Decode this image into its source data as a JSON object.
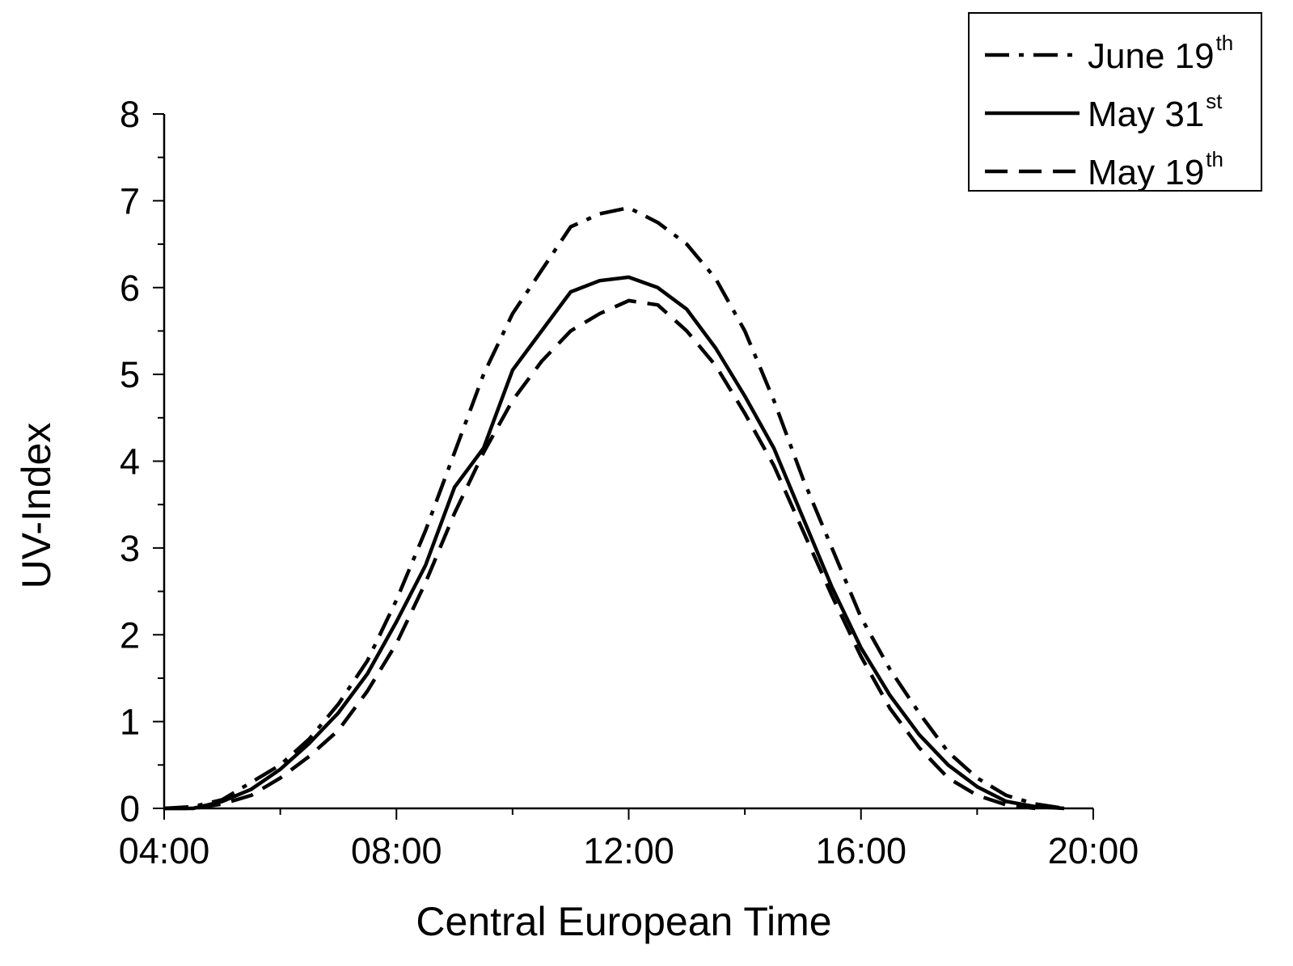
{
  "chart_data": {
    "type": "line",
    "title": "",
    "xlabel": "Central European Time",
    "ylabel": "UV-Index",
    "xlim": [
      4,
      20
    ],
    "ylim": [
      0,
      8
    ],
    "x_ticks": [
      4,
      8,
      12,
      16,
      20
    ],
    "x_tick_labels": [
      "04:00",
      "08:00",
      "12:00",
      "16:00",
      "20:00"
    ],
    "y_ticks": [
      0,
      1,
      2,
      3,
      4,
      5,
      6,
      7,
      8
    ],
    "y_tick_labels": [
      "0",
      "1",
      "2",
      "3",
      "4",
      "5",
      "6",
      "7",
      "8"
    ],
    "grid": false,
    "legend_position": "top-right",
    "series": [
      {
        "name": "June 19th",
        "label_main": "June 19",
        "label_sup": "th",
        "dash": "dashdot",
        "x": [
          4.0,
          4.5,
          5.0,
          5.5,
          6.0,
          6.5,
          7.0,
          7.5,
          8.0,
          8.5,
          9.0,
          9.5,
          10.0,
          10.5,
          11.0,
          11.5,
          12.0,
          12.5,
          13.0,
          13.5,
          14.0,
          14.5,
          15.0,
          15.5,
          16.0,
          16.5,
          17.0,
          17.5,
          18.0,
          18.5,
          19.0,
          19.5
        ],
        "y": [
          0.0,
          0.02,
          0.1,
          0.3,
          0.5,
          0.8,
          1.2,
          1.7,
          2.4,
          3.2,
          4.1,
          5.0,
          5.7,
          6.2,
          6.7,
          6.85,
          6.92,
          6.75,
          6.5,
          6.1,
          5.5,
          4.7,
          3.8,
          3.0,
          2.2,
          1.6,
          1.1,
          0.65,
          0.35,
          0.15,
          0.05,
          0.0
        ]
      },
      {
        "name": "May 31st",
        "label_main": "May 31",
        "label_sup": "st",
        "dash": "solid",
        "x": [
          4.0,
          4.5,
          5.0,
          5.5,
          6.0,
          6.5,
          7.0,
          7.5,
          8.0,
          8.5,
          9.0,
          9.5,
          10.0,
          10.5,
          11.0,
          11.5,
          12.0,
          12.5,
          13.0,
          13.5,
          14.0,
          14.5,
          15.0,
          15.5,
          16.0,
          16.5,
          17.0,
          17.5,
          18.0,
          18.5,
          19.0,
          19.5
        ],
        "y": [
          0.0,
          0.0,
          0.08,
          0.22,
          0.45,
          0.75,
          1.1,
          1.55,
          2.15,
          2.8,
          3.7,
          4.15,
          5.05,
          5.5,
          5.95,
          6.08,
          6.12,
          6.0,
          5.75,
          5.3,
          4.75,
          4.15,
          3.35,
          2.55,
          1.85,
          1.3,
          0.85,
          0.5,
          0.25,
          0.08,
          0.02,
          0.0
        ]
      },
      {
        "name": "May 19th",
        "label_main": "May 19",
        "label_sup": "th",
        "dash": "dashed",
        "x": [
          4.0,
          4.5,
          5.0,
          5.5,
          6.0,
          6.5,
          7.0,
          7.5,
          8.0,
          8.5,
          9.0,
          9.5,
          10.0,
          10.5,
          11.0,
          11.5,
          12.0,
          12.5,
          13.0,
          13.5,
          14.0,
          14.5,
          15.0,
          15.5,
          16.0,
          16.5,
          17.0,
          17.5,
          18.0,
          18.5,
          19.0
        ],
        "y": [
          0.0,
          0.0,
          0.05,
          0.15,
          0.35,
          0.6,
          0.9,
          1.35,
          1.9,
          2.6,
          3.4,
          4.1,
          4.7,
          5.15,
          5.5,
          5.7,
          5.85,
          5.8,
          5.5,
          5.1,
          4.55,
          3.95,
          3.2,
          2.45,
          1.75,
          1.15,
          0.7,
          0.35,
          0.15,
          0.04,
          0.0
        ]
      }
    ]
  }
}
